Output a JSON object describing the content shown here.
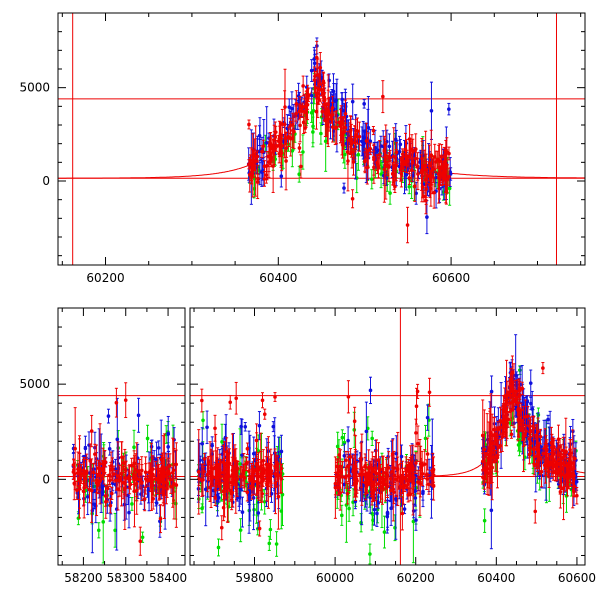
{
  "colors": {
    "red": "#ee0000",
    "blue": "#1010dd",
    "green": "#00dd00",
    "axis": "#000000"
  },
  "chart_data": [
    {
      "type": "scatter",
      "panel": "top",
      "xlim": [
        60145,
        60755
      ],
      "ylim": [
        -4500,
        9000
      ],
      "x_ticks": [
        60200,
        60400,
        60600
      ],
      "y_ticks": [
        0,
        5000
      ],
      "hlines": [
        4400,
        150
      ],
      "vlines": [
        60162,
        60722
      ],
      "model_curve": {
        "peak_x": 60440,
        "peak_y": 5000,
        "baseline": 150,
        "width_left": 38,
        "width_right": 55
      },
      "series": [
        {
          "color": "red",
          "x_range": [
            60365,
            60600
          ],
          "level": "main"
        },
        {
          "color": "blue",
          "x_range": [
            60365,
            60600
          ],
          "level": "high"
        },
        {
          "color": "green",
          "x_range": [
            60365,
            60600
          ],
          "level": "low"
        }
      ]
    },
    {
      "type": "scatter",
      "panel": "bottom",
      "segments": [
        {
          "xlim": [
            58140,
            58440
          ],
          "x_ticks": [
            58200,
            58300,
            58400
          ]
        },
        {
          "xlim": [
            59640,
            60620
          ],
          "x_ticks": [
            59800,
            60000,
            60200,
            60400,
            60600
          ]
        }
      ],
      "ylim": [
        -4500,
        9000
      ],
      "y_ticks": [
        0,
        5000
      ],
      "hlines": [
        4400,
        150
      ],
      "vlines": [
        60162
      ],
      "model_curve": {
        "peak_x": 60440,
        "peak_y": 5000,
        "baseline": 150,
        "width_left": 38,
        "width_right": 55
      },
      "data_clusters": [
        {
          "x_range": [
            58175,
            58420
          ],
          "flare": false
        },
        {
          "x_range": [
            59660,
            59870
          ],
          "flare": false
        },
        {
          "x_range": [
            60000,
            60245
          ],
          "flare": false
        },
        {
          "x_range": [
            60365,
            60600
          ],
          "flare": true
        }
      ]
    }
  ]
}
